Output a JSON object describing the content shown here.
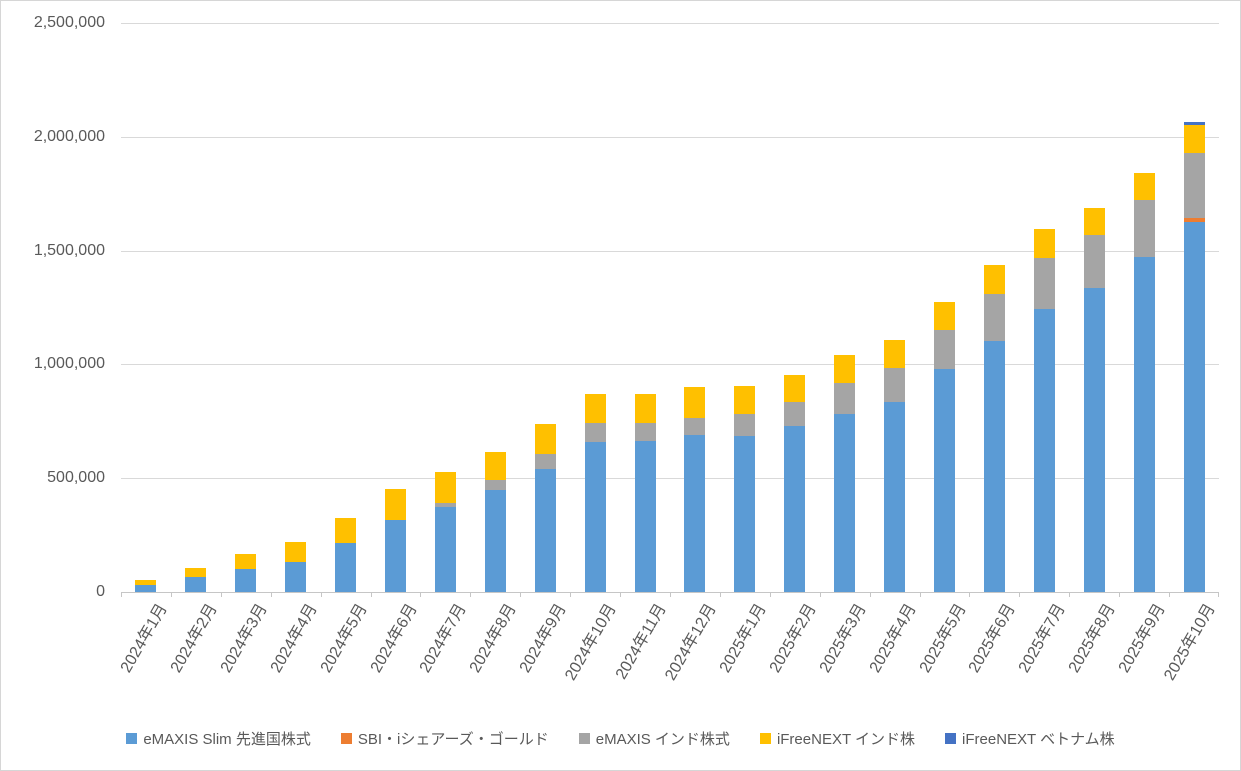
{
  "chart_data": {
    "type": "bar",
    "variant": "stacked-column",
    "title": "",
    "xlabel": "",
    "ylabel": "",
    "ylim": [
      0,
      2500000
    ],
    "ytick_step": 500000,
    "ytick_labels": [
      "0",
      "500,000",
      "1,000,000",
      "1,500,000",
      "2,000,000",
      "2,500,000"
    ],
    "grid": true,
    "legend_position": "bottom",
    "text_color": "#595959",
    "gridline_color": "#d9d9d9",
    "categories": [
      "2024年1月",
      "2024年2月",
      "2024年3月",
      "2024年4月",
      "2024年5月",
      "2024年6月",
      "2024年7月",
      "2024年8月",
      "2024年9月",
      "2024年10月",
      "2024年11月",
      "2024年12月",
      "2025年1月",
      "2025年2月",
      "2025年3月",
      "2025年4月",
      "2025年5月",
      "2025年6月",
      "2025年7月",
      "2025年8月",
      "2025年9月",
      "2025年10月"
    ],
    "series": [
      {
        "name": "eMAXIS Slim 先進国株式",
        "color": "#5B9BD5",
        "values": [
          30000,
          66000,
          101000,
          130000,
          217000,
          315000,
          373000,
          447000,
          542000,
          660000,
          662000,
          688000,
          686000,
          729000,
          784000,
          836000,
          979000,
          1103000,
          1245000,
          1334000,
          1473000,
          1627000
        ]
      },
      {
        "name": "SBI・iシェアーズ・ゴールド",
        "color": "#ED7D31",
        "values": [
          0,
          0,
          0,
          0,
          0,
          0,
          0,
          0,
          0,
          0,
          0,
          0,
          0,
          0,
          0,
          0,
          0,
          0,
          0,
          0,
          0,
          15000
        ]
      },
      {
        "name": "eMAXIS インド株式",
        "color": "#A5A5A5",
        "values": [
          0,
          0,
          0,
          0,
          0,
          0,
          19000,
          44000,
          66000,
          83000,
          82000,
          78000,
          98000,
          107000,
          136000,
          147000,
          173000,
          205000,
          224000,
          233000,
          249000,
          285000
        ]
      },
      {
        "name": "iFreeNEXT インド株",
        "color": "#FFC000",
        "values": [
          23000,
          41000,
          66000,
          88000,
          108000,
          139000,
          135000,
          124000,
          132000,
          127000,
          124000,
          136000,
          122000,
          119000,
          123000,
          124000,
          123000,
          129000,
          126000,
          121000,
          120000,
          125000
        ]
      },
      {
        "name": "iFreeNEXT ベトナム株",
        "color": "#4472C4",
        "values": [
          0,
          0,
          0,
          0,
          0,
          0,
          0,
          0,
          0,
          0,
          0,
          0,
          0,
          0,
          0,
          0,
          0,
          0,
          0,
          0,
          0,
          12000
        ]
      }
    ]
  }
}
